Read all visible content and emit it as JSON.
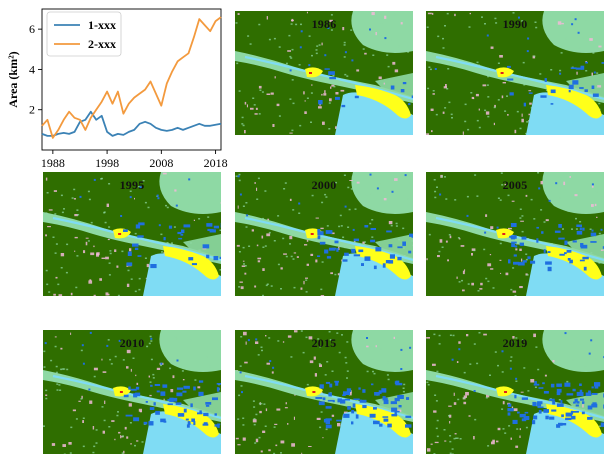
{
  "chart_data": {
    "type": "line",
    "title": "",
    "xlabel": "",
    "ylabel": "Area (km²)",
    "xlim": [
      1986,
      2019
    ],
    "ylim": [
      0,
      7
    ],
    "xticks": [
      1988,
      1998,
      2008,
      2018
    ],
    "yticks": [
      2,
      4,
      6
    ],
    "legend_position": "top-left",
    "x": [
      1986,
      1987,
      1988,
      1989,
      1990,
      1991,
      1992,
      1993,
      1994,
      1995,
      1996,
      1997,
      1998,
      1999,
      2000,
      2001,
      2002,
      2003,
      2004,
      2005,
      2006,
      2007,
      2008,
      2009,
      2010,
      2011,
      2012,
      2013,
      2014,
      2015,
      2016,
      2017,
      2018,
      2019
    ],
    "series": [
      {
        "name": "1-xxx",
        "color": "#3b82b5",
        "values": [
          0.8,
          0.7,
          0.7,
          0.8,
          0.85,
          0.8,
          0.9,
          1.4,
          1.5,
          1.9,
          1.5,
          1.7,
          0.9,
          0.7,
          0.8,
          0.75,
          0.9,
          1.0,
          1.3,
          1.4,
          1.3,
          1.1,
          1.0,
          0.95,
          1.0,
          1.1,
          1.0,
          1.1,
          1.2,
          1.3,
          1.2,
          1.2,
          1.25,
          1.3
        ]
      },
      {
        "name": "2-xxx",
        "color": "#f39a3e",
        "values": [
          1.2,
          1.5,
          0.6,
          1.0,
          1.5,
          1.9,
          1.6,
          1.5,
          1.0,
          1.6,
          2.0,
          2.4,
          2.9,
          2.3,
          2.9,
          1.8,
          2.3,
          2.6,
          2.8,
          3.0,
          3.4,
          2.8,
          2.2,
          3.3,
          3.9,
          4.4,
          4.6,
          4.8,
          5.6,
          6.5,
          6.2,
          5.9,
          6.4,
          6.6
        ]
      }
    ]
  },
  "maps": {
    "colors": {
      "forest": "#2f6e00",
      "grass": "#8ed9a4",
      "water": "#7fdcf4",
      "sand": "#ffff1a",
      "urban": "#f2b8d8",
      "blue": "#1f6fe0",
      "red": "#e02020"
    },
    "panels": [
      {
        "year": "1986"
      },
      {
        "year": "1990"
      },
      {
        "year": "1995"
      },
      {
        "year": "2000"
      },
      {
        "year": "2005"
      },
      {
        "year": "2010"
      },
      {
        "year": "2015"
      },
      {
        "year": "2019"
      }
    ]
  }
}
